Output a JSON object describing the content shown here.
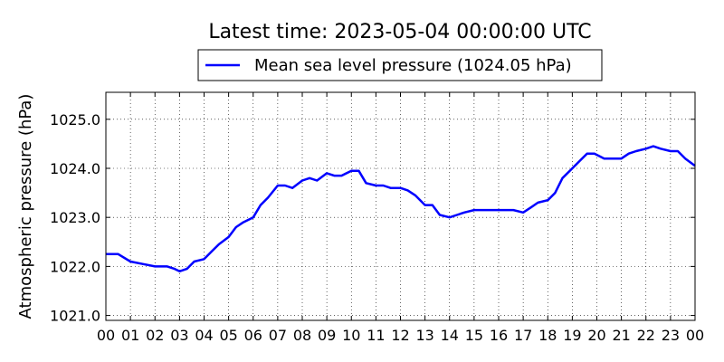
{
  "chart_data": {
    "type": "line",
    "title": "Latest time: 2023-05-04 00:00:00 UTC",
    "xlabel": "",
    "ylabel": "Atmospheric pressure (hPa)",
    "xlim": [
      0,
      24
    ],
    "ylim": [
      1020.9,
      1025.55
    ],
    "x_ticks": [
      "00",
      "01",
      "02",
      "03",
      "04",
      "05",
      "06",
      "07",
      "08",
      "09",
      "10",
      "11",
      "12",
      "13",
      "14",
      "15",
      "16",
      "17",
      "18",
      "19",
      "20",
      "21",
      "22",
      "23",
      "00"
    ],
    "y_ticks": [
      "1021.0",
      "1022.0",
      "1023.0",
      "1024.0",
      "1025.0"
    ],
    "y_tick_values": [
      1021.0,
      1022.0,
      1023.0,
      1024.0,
      1025.0
    ],
    "grid": true,
    "legend_position": "top-center",
    "series": [
      {
        "name": "Mean sea level pressure (1024.05 hPa)",
        "color": "#0000ff",
        "x": [
          0,
          0.5,
          1.0,
          1.5,
          2.0,
          2.5,
          2.8,
          3.0,
          3.3,
          3.6,
          4.0,
          4.3,
          4.6,
          5.0,
          5.3,
          5.6,
          6.0,
          6.3,
          6.6,
          7.0,
          7.3,
          7.6,
          8.0,
          8.3,
          8.6,
          9.0,
          9.3,
          9.6,
          10.0,
          10.3,
          10.6,
          11.0,
          11.3,
          11.6,
          12.0,
          12.3,
          12.6,
          13.0,
          13.3,
          13.6,
          14.0,
          14.3,
          14.6,
          15.0,
          15.3,
          15.6,
          16.0,
          16.3,
          16.6,
          17.0,
          17.3,
          17.6,
          18.0,
          18.3,
          18.6,
          19.0,
          19.3,
          19.6,
          19.9,
          20.3,
          20.6,
          21.0,
          21.3,
          21.6,
          22.0,
          22.3,
          22.6,
          23.0,
          23.3,
          23.6,
          24.0
        ],
        "y": [
          1022.25,
          1022.25,
          1022.1,
          1022.05,
          1022.0,
          1022.0,
          1021.95,
          1021.9,
          1021.95,
          1022.1,
          1022.15,
          1022.3,
          1022.45,
          1022.6,
          1022.8,
          1022.9,
          1023.0,
          1023.25,
          1023.4,
          1023.65,
          1023.65,
          1023.6,
          1023.75,
          1023.8,
          1023.75,
          1023.9,
          1023.85,
          1023.85,
          1023.95,
          1023.95,
          1023.7,
          1023.65,
          1023.65,
          1023.6,
          1023.6,
          1023.55,
          1023.45,
          1023.25,
          1023.25,
          1023.05,
          1023.0,
          1023.05,
          1023.1,
          1023.15,
          1023.15,
          1023.15,
          1023.15,
          1023.15,
          1023.15,
          1023.1,
          1023.2,
          1023.3,
          1023.35,
          1023.5,
          1023.8,
          1024.0,
          1024.15,
          1024.3,
          1024.3,
          1024.2,
          1024.2,
          1024.2,
          1024.3,
          1024.35,
          1024.4,
          1024.45,
          1024.4,
          1024.35,
          1024.35,
          1024.2,
          1024.05
        ]
      }
    ]
  }
}
